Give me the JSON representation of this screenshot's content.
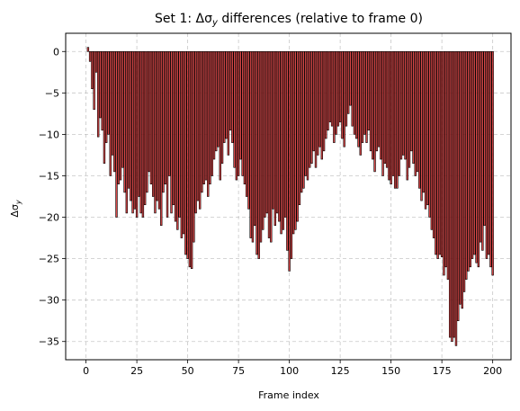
{
  "chart_data": {
    "type": "bar",
    "title_prefix": "Set 1: Δσ",
    "title_sub": "y",
    "title_suffix": " differences (relative to frame 0)",
    "xlabel": "Frame index",
    "ylabel_main": "Δσ",
    "ylabel_sub": "y",
    "xlim": [
      -10,
      209
    ],
    "ylim": [
      -37.2,
      2.2
    ],
    "xticks": [
      0,
      25,
      50,
      75,
      100,
      125,
      150,
      175,
      200
    ],
    "yticks": [
      0,
      -5,
      -10,
      -15,
      -20,
      -25,
      -30,
      -35
    ],
    "ytick_labels": [
      "0",
      "−5",
      "−10",
      "−15",
      "−20",
      "−25",
      "−30",
      "−35"
    ],
    "grid": true,
    "bar_color": "#d62728",
    "edge_color": "#000000",
    "x_start": 1,
    "values": [
      0.5,
      -1.2,
      -4.5,
      -7.0,
      -2.5,
      -10.3,
      -8.0,
      -9.5,
      -13.5,
      -11.0,
      -10.0,
      -15.0,
      -12.5,
      -14.5,
      -20.0,
      -16.0,
      -15.5,
      -14.0,
      -17.0,
      -19.5,
      -16.5,
      -18.0,
      -19.5,
      -19.0,
      -20.0,
      -17.5,
      -19.5,
      -20.0,
      -18.5,
      -17.0,
      -14.5,
      -16.0,
      -17.5,
      -19.5,
      -18.0,
      -19.0,
      -21.0,
      -17.0,
      -16.0,
      -20.0,
      -15.0,
      -19.5,
      -18.5,
      -20.5,
      -21.5,
      -20.0,
      -22.5,
      -22.0,
      -24.5,
      -25.0,
      -26.0,
      -26.2,
      -23.0,
      -19.5,
      -18.0,
      -19.0,
      -17.0,
      -16.0,
      -15.5,
      -17.5,
      -16.0,
      -15.0,
      -13.0,
      -12.0,
      -11.5,
      -15.5,
      -13.5,
      -11.0,
      -10.5,
      -12.5,
      -9.5,
      -11.0,
      -14.0,
      -15.5,
      -15.0,
      -13.0,
      -15.0,
      -16.0,
      -17.5,
      -19.0,
      -22.5,
      -23.0,
      -21.0,
      -24.5,
      -25.0,
      -23.0,
      -21.5,
      -20.0,
      -19.5,
      -22.5,
      -23.0,
      -19.0,
      -21.0,
      -19.5,
      -20.5,
      -22.0,
      -21.5,
      -20.0,
      -24.0,
      -26.5,
      -25.0,
      -22.0,
      -21.5,
      -20.5,
      -18.5,
      -17.0,
      -16.5,
      -15.0,
      -15.5,
      -14.0,
      -13.5,
      -12.0,
      -14.0,
      -12.5,
      -11.5,
      -13.0,
      -12.0,
      -10.5,
      -9.5,
      -8.5,
      -9.0,
      -11.0,
      -10.0,
      -9.0,
      -8.5,
      -10.5,
      -11.5,
      -9.0,
      -7.5,
      -6.5,
      -9.0,
      -10.0,
      -10.5,
      -11.5,
      -12.5,
      -11.0,
      -10.0,
      -11.0,
      -9.5,
      -12.0,
      -13.0,
      -14.5,
      -12.0,
      -11.5,
      -13.0,
      -15.0,
      -13.5,
      -14.0,
      -15.5,
      -16.0,
      -15.0,
      -16.5,
      -16.5,
      -15.0,
      -13.0,
      -12.5,
      -13.0,
      -15.5,
      -14.0,
      -12.0,
      -13.5,
      -15.0,
      -14.5,
      -16.5,
      -18.0,
      -17.0,
      -19.0,
      -18.5,
      -20.0,
      -21.5,
      -22.5,
      -24.5,
      -25.0,
      -24.5,
      -24.8,
      -27.0,
      -26.0,
      -27.5,
      -34.5,
      -35.0,
      -34.5,
      -35.5,
      -32.5,
      -30.5,
      -31.0,
      -29.0,
      -27.5,
      -26.5,
      -26.0,
      -25.0,
      -24.5,
      -25.5,
      -26.0,
      -23.0,
      -24.0,
      -21.0,
      -25.0,
      -24.5,
      -26.0,
      -27.0
    ]
  }
}
